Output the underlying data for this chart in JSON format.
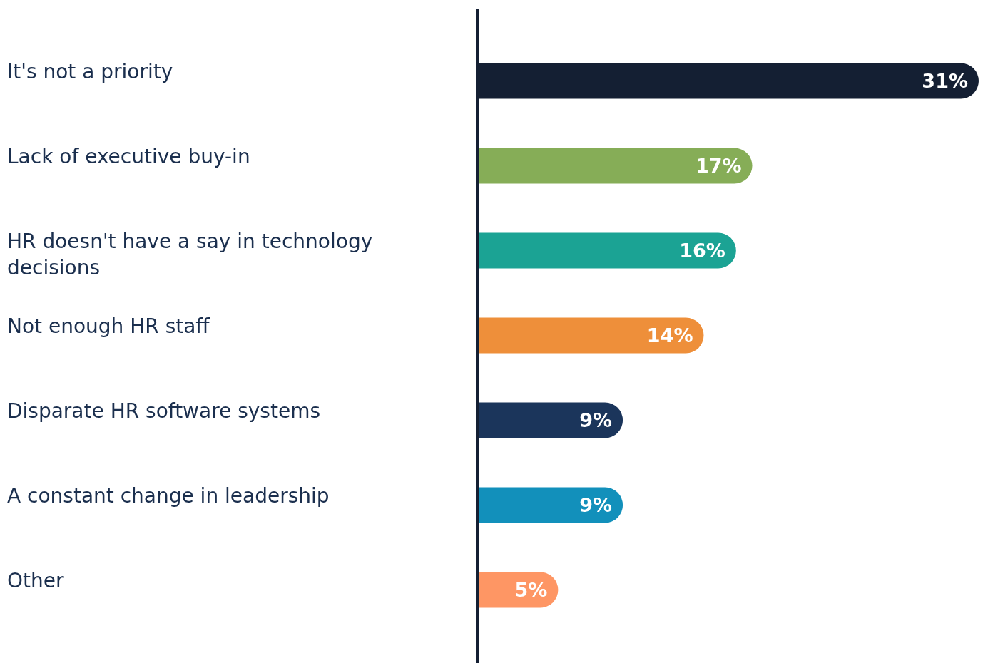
{
  "chart_data": {
    "type": "bar",
    "orientation": "horizontal",
    "categories": [
      "It's not a priority",
      "Lack of executive buy-in",
      "HR doesn't have a say in technology decisions",
      "Not enough HR staff",
      "Disparate HR software systems",
      "A constant change in leadership",
      "Other"
    ],
    "values": [
      31,
      17,
      16,
      14,
      9,
      9,
      5
    ],
    "colors": [
      "#141f33",
      "#86ad57",
      "#1ba394",
      "#ee8f3a",
      "#1b355b",
      "#1290bb",
      "#fe9664"
    ],
    "value_labels": [
      "31%",
      "17%",
      "16%",
      "14%",
      "9%",
      "9%",
      "5%"
    ],
    "xlim": [
      0,
      31
    ],
    "tick_labels": "y"
  }
}
